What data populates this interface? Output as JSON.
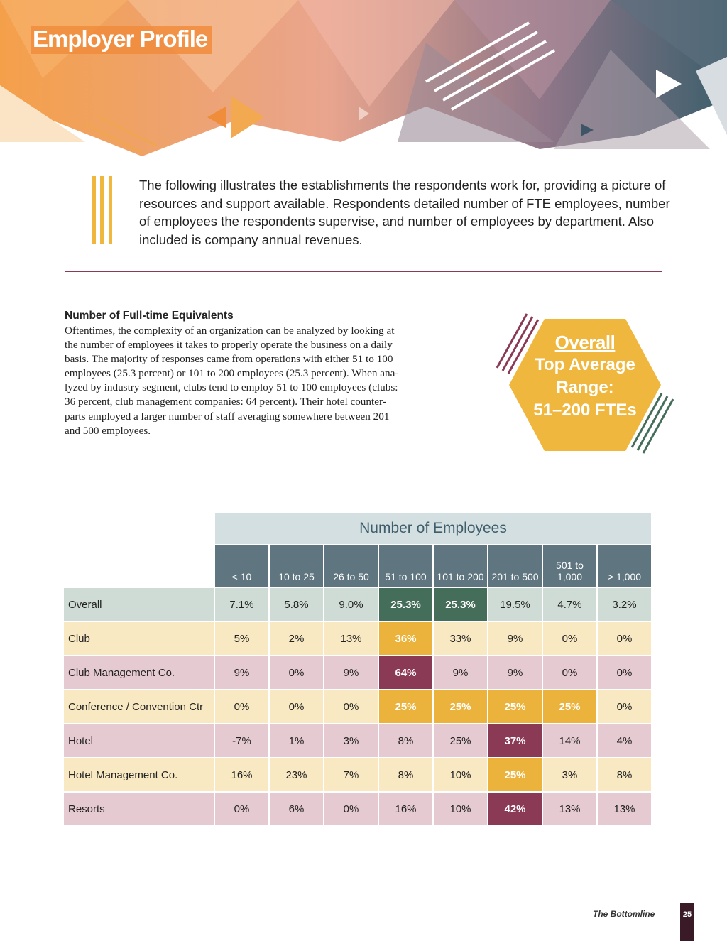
{
  "header": {
    "title": "Employer Profile"
  },
  "intro": {
    "lines": [
      "The following illustrates the establishments the respondents work for, providing a picture of",
      "resources and support available. Respondents detailed number of FTE employees, number",
      "of employees the respondents supervise, and number of employees by department. Also",
      "included is company annual revenues."
    ]
  },
  "section": {
    "heading": "Number of Full-time Equivalents",
    "lines": [
      "Oftentimes, the complexity of an organization can be analyzed by looking at",
      "the number of employees it takes to properly operate the business on a daily",
      "basis. The majority of responses came from operations with either 51 to 100",
      "employees (25.3 percent) or 101 to 200 employees (25.3 percent). When ana-",
      "lyzed by industry segment, clubs tend to employ 51 to 100 employees (clubs:",
      "36 percent, club management companies: 64 percent). Their hotel counter-",
      "parts employed a larger number of staff averaging somewhere between 201",
      "and 500 employees."
    ]
  },
  "callout": {
    "title": "Overall",
    "lines": [
      "Top Average",
      "Range:",
      "51–200 FTEs"
    ]
  },
  "table": {
    "title": "Number of Employees",
    "columns": [
      "< 10",
      "10 to 25",
      "26 to 50",
      "51 to 100",
      "101 to 200",
      "201 to 500",
      "501 to 1,000",
      "> 1,000"
    ],
    "rows": [
      [
        "Overall",
        "7.1%",
        "5.8%",
        "9.0%",
        "25.3%",
        "25.3%",
        "19.5%",
        "4.7%",
        "3.2%"
      ],
      [
        "Club",
        "5%",
        "2%",
        "13%",
        "36%",
        "33%",
        "9%",
        "0%",
        "0%"
      ],
      [
        "Club Management Co.",
        "9%",
        "0%",
        "9%",
        "64%",
        "9%",
        "9%",
        "0%",
        "0%"
      ],
      [
        "Conference / Convention Ctr",
        "0%",
        "0%",
        "0%",
        "25%",
        "25%",
        "25%",
        "25%",
        "0%"
      ],
      [
        "Hotel",
        "-7%",
        "1%",
        "3%",
        "8%",
        "25%",
        "37%",
        "14%",
        "4%"
      ],
      [
        "Hotel Management Co.",
        "16%",
        "23%",
        "7%",
        "8%",
        "10%",
        "25%",
        "3%",
        "8%"
      ],
      [
        "Resorts",
        "0%",
        "6%",
        "0%",
        "16%",
        "10%",
        "42%",
        "13%",
        "13%"
      ]
    ]
  },
  "footer": {
    "publication": "The Bottomline",
    "page": "25"
  }
}
